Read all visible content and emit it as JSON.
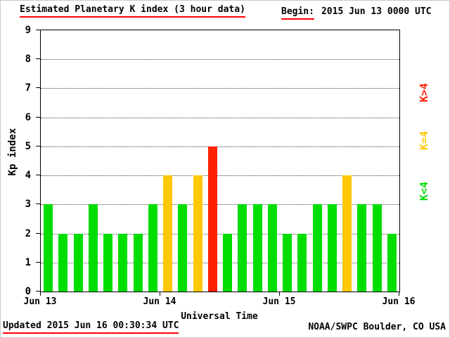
{
  "header": {
    "title": "Estimated Planetary K index (3 hour data)",
    "begin_label": "Begin:",
    "begin_value": "2015 Jun 13 0000 UTC"
  },
  "chart_data": {
    "type": "bar",
    "title": "Estimated Planetary K index (3 hour data)",
    "xlabel": "Universal Time",
    "ylabel": "Kp index",
    "ylim": [
      0,
      9
    ],
    "y_ticks": [
      0,
      1,
      2,
      3,
      4,
      5,
      6,
      7,
      8,
      9
    ],
    "x_tick_labels": [
      "Jun 13",
      "Jun 14",
      "Jun 15",
      "Jun 16"
    ],
    "bar_interval_hours": 3,
    "values": [
      3,
      2,
      2,
      3,
      2,
      2,
      2,
      3,
      4,
      3,
      4,
      5,
      2,
      3,
      3,
      3,
      2,
      2,
      3,
      3,
      4,
      3,
      3,
      2
    ],
    "colors": {
      "low": "#00dd00",
      "mid": "#ffc800",
      "high": "#ff2000"
    },
    "legend": [
      {
        "label": "K>4",
        "color": "#ff2000"
      },
      {
        "label": "K=4",
        "color": "#ffc800"
      },
      {
        "label": "K<4",
        "color": "#00dd00"
      }
    ],
    "grid": "dotted horizontal lines at each integer Kp value",
    "legend_position": "right"
  },
  "footer": {
    "updated": "Updated 2015 Jun 16 00:30:34 UTC",
    "credit": "NOAA/SWPC Boulder, CO USA"
  }
}
